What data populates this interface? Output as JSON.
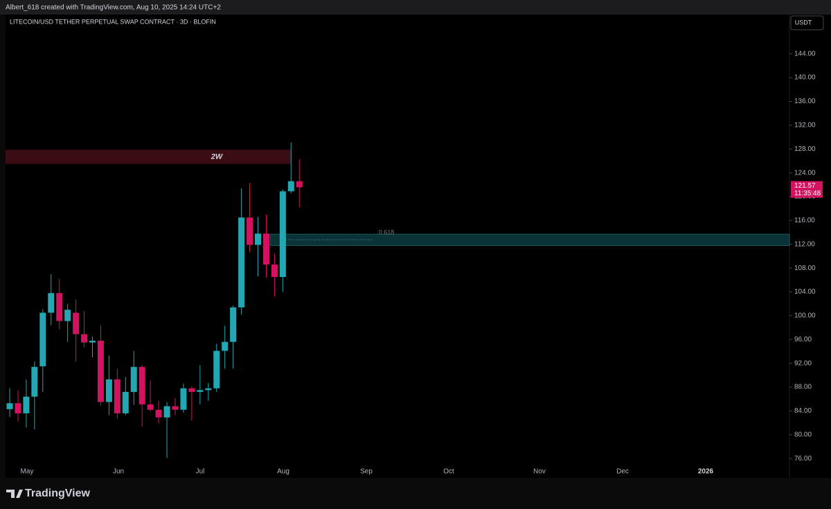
{
  "header": "Albert_618 created with TradingView.com, Aug 10, 2025 14:24 UTC+2",
  "footer_logo": "TradingView",
  "chart_data": {
    "type": "candlestick",
    "title": "LITECOIN/USD TETHER PERPETUAL SWAP CONTRACT · 3D · BLOFIN",
    "currency": "USDT",
    "up_color": "#22a7b3",
    "down_color": "#d3135f",
    "categories": [
      null,
      null,
      null,
      null,
      null,
      null,
      null,
      null,
      null,
      null,
      null,
      null,
      null,
      null,
      null,
      null,
      null,
      null,
      null,
      null,
      null,
      null,
      null,
      null,
      null,
      null,
      null,
      null,
      null,
      null,
      null,
      null,
      null,
      null,
      null,
      null
    ],
    "open": [
      84.3,
      85.3,
      83.6,
      86.4,
      91.5,
      100.5,
      103.8,
      99.1,
      100.5,
      96.9,
      95.5,
      95.8,
      85.5,
      89.3,
      83.6,
      87.2,
      91.4,
      85.1,
      84.2,
      82.9,
      84.8,
      84.2,
      87.8,
      87.2,
      87.5,
      87.8,
      94.1,
      95.6,
      101.4,
      116.5,
      111.9,
      113.8,
      108.6,
      106.5,
      120.9,
      122.6
    ],
    "high": [
      87.8,
      87.5,
      89.3,
      92.3,
      101.1,
      107.0,
      106.2,
      102.0,
      102.8,
      100.8,
      96.5,
      98.4,
      93.3,
      91.1,
      89.7,
      94.1,
      91.7,
      89.1,
      85.7,
      85.5,
      86.2,
      88.6,
      88.1,
      91.7,
      88.7,
      95.3,
      98.3,
      101.7,
      121.4,
      122.3,
      116.6,
      117.0,
      110.4,
      121.2,
      129.1,
      126.3
    ],
    "low": [
      83.0,
      82.2,
      81.2,
      80.9,
      87.2,
      98.4,
      97.7,
      95.6,
      92.3,
      94.7,
      93.0,
      84.9,
      83.3,
      82.7,
      83.3,
      85.0,
      81.4,
      83.9,
      81.9,
      76.1,
      83.3,
      83.7,
      82.4,
      85.1,
      85.7,
      87.2,
      91.1,
      91.1,
      100.2,
      110.7,
      106.6,
      106.4,
      103.2,
      104.0,
      120.6,
      118.2
    ],
    "close": [
      85.3,
      83.6,
      86.4,
      91.4,
      100.5,
      103.8,
      99.1,
      101.0,
      96.9,
      95.5,
      95.8,
      85.5,
      89.3,
      83.6,
      87.2,
      91.4,
      85.1,
      84.2,
      82.9,
      84.8,
      84.2,
      87.8,
      87.2,
      87.5,
      87.8,
      94.1,
      95.6,
      101.4,
      116.5,
      111.9,
      113.8,
      108.6,
      106.5,
      120.9,
      122.6,
      121.57
    ],
    "ylim": [
      72.76,
      150.6
    ],
    "yticks": [
      {
        "value": 76,
        "label": "76.00"
      },
      {
        "value": 80,
        "label": "80.00"
      },
      {
        "value": 84,
        "label": "84.00"
      },
      {
        "value": 88,
        "label": "88.00"
      },
      {
        "value": 92,
        "label": "92.00"
      },
      {
        "value": 96,
        "label": "96.00"
      },
      {
        "value": 100,
        "label": "100.00"
      },
      {
        "value": 104,
        "label": "104.00"
      },
      {
        "value": 108,
        "label": "108.00"
      },
      {
        "value": 112,
        "label": "112.00"
      },
      {
        "value": 116,
        "label": "116.00"
      },
      {
        "value": 120,
        "label": "120.00"
      },
      {
        "value": 124,
        "label": "124.00"
      },
      {
        "value": 128,
        "label": "128.00"
      },
      {
        "value": 132,
        "label": "132.00"
      },
      {
        "value": 136,
        "label": "136.00"
      },
      {
        "value": 140,
        "label": "140.00"
      },
      {
        "value": 144,
        "label": "144.00"
      }
    ],
    "x_axis_labels": [
      "May",
      "Jun",
      "Jul",
      "Aug",
      "Sep",
      "Oct",
      "Nov",
      "Dec",
      "2026"
    ],
    "last_price": 121.57,
    "countdown": "11:35:48",
    "zones": [
      {
        "label": "2W",
        "low": 125.5,
        "high": 127.9,
        "color": "#3a0c14"
      },
      {
        "label": "0.618",
        "low": 111.8,
        "high": 113.7,
        "color": "#0b3236"
      }
    ]
  }
}
